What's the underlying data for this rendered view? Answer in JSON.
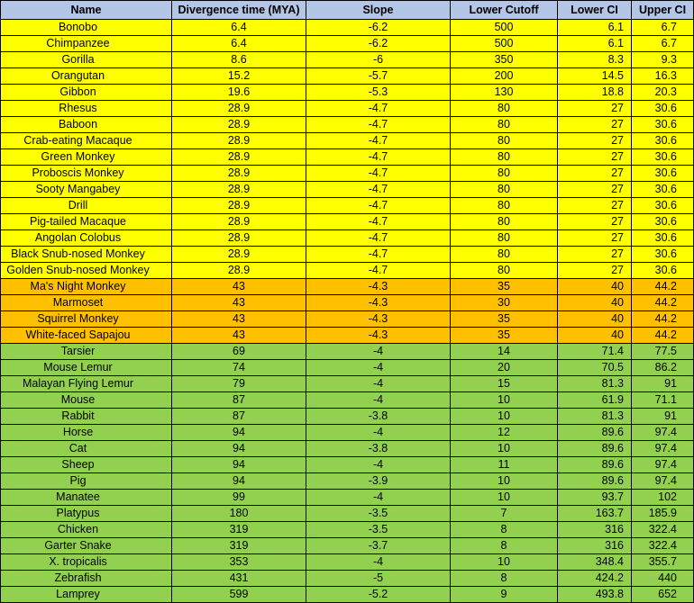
{
  "colors": {
    "header": "#b4c6e7",
    "yellow": "#ffff00",
    "orange": "#ffc000",
    "green": "#92d050"
  },
  "columns": [
    "Name",
    "Divergence time (MYA)",
    "Slope",
    "Lower Cutoff",
    "Lower CI",
    "Upper CI"
  ],
  "rows": [
    {
      "group": "yellow",
      "cells": [
        "Bonobo",
        "6.4",
        "-6.2",
        "500",
        "6.1",
        "6.7"
      ]
    },
    {
      "group": "yellow",
      "cells": [
        "Chimpanzee",
        "6.4",
        "-6.2",
        "500",
        "6.1",
        "6.7"
      ]
    },
    {
      "group": "yellow",
      "cells": [
        "Gorilla",
        "8.6",
        "-6",
        "350",
        "8.3",
        "9.3"
      ]
    },
    {
      "group": "yellow",
      "cells": [
        "Orangutan",
        "15.2",
        "-5.7",
        "200",
        "14.5",
        "16.3"
      ]
    },
    {
      "group": "yellow",
      "cells": [
        "Gibbon",
        "19.6",
        "-5.3",
        "130",
        "18.8",
        "20.3"
      ]
    },
    {
      "group": "yellow",
      "cells": [
        "Rhesus",
        "28.9",
        "-4.7",
        "80",
        "27",
        "30.6"
      ]
    },
    {
      "group": "yellow",
      "cells": [
        "Baboon",
        "28.9",
        "-4.7",
        "80",
        "27",
        "30.6"
      ]
    },
    {
      "group": "yellow",
      "cells": [
        "Crab-eating Macaque",
        "28.9",
        "-4.7",
        "80",
        "27",
        "30.6"
      ]
    },
    {
      "group": "yellow",
      "cells": [
        "Green Monkey",
        "28.9",
        "-4.7",
        "80",
        "27",
        "30.6"
      ]
    },
    {
      "group": "yellow",
      "cells": [
        "Proboscis Monkey",
        "28.9",
        "-4.7",
        "80",
        "27",
        "30.6"
      ]
    },
    {
      "group": "yellow",
      "cells": [
        "Sooty Mangabey",
        "28.9",
        "-4.7",
        "80",
        "27",
        "30.6"
      ]
    },
    {
      "group": "yellow",
      "cells": [
        "Drill",
        "28.9",
        "-4.7",
        "80",
        "27",
        "30.6"
      ]
    },
    {
      "group": "yellow",
      "cells": [
        "Pig-tailed Macaque",
        "28.9",
        "-4.7",
        "80",
        "27",
        "30.6"
      ]
    },
    {
      "group": "yellow",
      "cells": [
        "Angolan Colobus",
        "28.9",
        "-4.7",
        "80",
        "27",
        "30.6"
      ]
    },
    {
      "group": "yellow",
      "cells": [
        "Black Snub-nosed Monkey",
        "28.9",
        "-4.7",
        "80",
        "27",
        "30.6"
      ]
    },
    {
      "group": "yellow",
      "cells": [
        "Golden Snub-nosed Monkey",
        "28.9",
        "-4.7",
        "80",
        "27",
        "30.6"
      ]
    },
    {
      "group": "orange",
      "cells": [
        "Ma's Night Monkey",
        "43",
        "-4.3",
        "35",
        "40",
        "44.2"
      ]
    },
    {
      "group": "orange",
      "cells": [
        "Marmoset",
        "43",
        "-4.3",
        "30",
        "40",
        "44.2"
      ]
    },
    {
      "group": "orange",
      "cells": [
        "Squirrel Monkey",
        "43",
        "-4.3",
        "35",
        "40",
        "44.2"
      ]
    },
    {
      "group": "orange",
      "cells": [
        "White-faced Sapajou",
        "43",
        "-4.3",
        "35",
        "40",
        "44.2"
      ]
    },
    {
      "group": "green",
      "cells": [
        "Tarsier",
        "69",
        "-4",
        "14",
        "71.4",
        "77.5"
      ]
    },
    {
      "group": "green",
      "cells": [
        "Mouse Lemur",
        "74",
        "-4",
        "20",
        "70.5",
        "86.2"
      ]
    },
    {
      "group": "green",
      "cells": [
        "Malayan Flying Lemur",
        "79",
        "-4",
        "15",
        "81.3",
        "91"
      ]
    },
    {
      "group": "green",
      "cells": [
        "Mouse",
        "87",
        "-4",
        "10",
        "61.9",
        "71.1"
      ]
    },
    {
      "group": "green",
      "cells": [
        "Rabbit",
        "87",
        "-3.8",
        "10",
        "81.3",
        "91"
      ]
    },
    {
      "group": "green",
      "cells": [
        "Horse",
        "94",
        "-4",
        "12",
        "89.6",
        "97.4"
      ]
    },
    {
      "group": "green",
      "cells": [
        "Cat",
        "94",
        "-3.8",
        "10",
        "89.6",
        "97.4"
      ]
    },
    {
      "group": "green",
      "cells": [
        "Sheep",
        "94",
        "-4",
        "11",
        "89.6",
        "97.4"
      ]
    },
    {
      "group": "green",
      "cells": [
        "Pig",
        "94",
        "-3.9",
        "10",
        "89.6",
        "97.4"
      ]
    },
    {
      "group": "green",
      "cells": [
        "Manatee",
        "99",
        "-4",
        "10",
        "93.7",
        "102"
      ]
    },
    {
      "group": "green",
      "cells": [
        "Platypus",
        "180",
        "-3.5",
        "7",
        "163.7",
        "185.9"
      ]
    },
    {
      "group": "green",
      "cells": [
        "Chicken",
        "319",
        "-3.5",
        "8",
        "316",
        "322.4"
      ]
    },
    {
      "group": "green",
      "cells": [
        "Garter Snake",
        "319",
        "-3.7",
        "8",
        "316",
        "322.4"
      ]
    },
    {
      "group": "green",
      "cells": [
        "X. tropicalis",
        "353",
        "-4",
        "10",
        "348.4",
        "355.7"
      ]
    },
    {
      "group": "green",
      "cells": [
        "Zebrafish",
        "431",
        "-5",
        "8",
        "424.2",
        "440"
      ]
    },
    {
      "group": "green",
      "cells": [
        "Lamprey",
        "599",
        "-5.2",
        "9",
        "493.8",
        "652"
      ]
    }
  ]
}
